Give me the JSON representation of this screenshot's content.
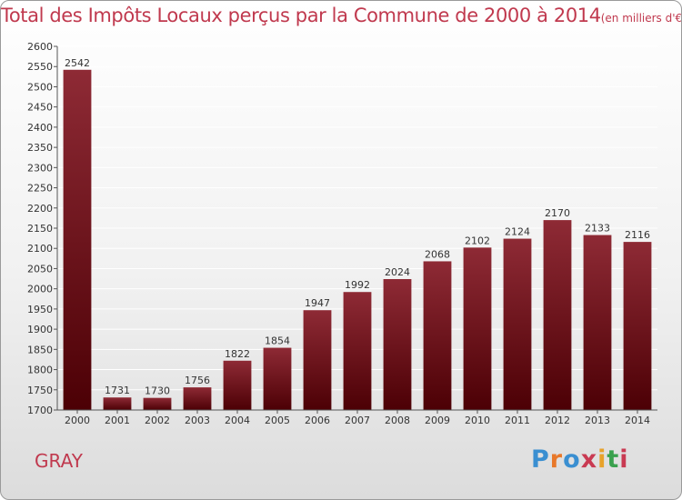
{
  "header": {
    "title": "Total des Impôts Locaux perçus par la Commune de 2000 à 2014",
    "unit": "(en milliers d'€)"
  },
  "footer": {
    "commune": "GRAY",
    "brand": "Proxiti",
    "brand_colors": [
      "#3a8fd1",
      "#e8782a",
      "#3a8fd1",
      "#c93a52",
      "#e8a22a",
      "#3aa14e",
      "#c93a52"
    ]
  },
  "colors": {
    "bar_top": "#8e2a35",
    "bar_bottom": "#4c0005",
    "accent": "#c0394e",
    "grid": "#ffffff"
  },
  "chart_data": {
    "type": "bar",
    "title": "Total des Impôts Locaux perçus par la Commune de 2000 à 2014",
    "xlabel": "",
    "ylabel": "(en milliers d'€)",
    "categories": [
      "2000",
      "2001",
      "2002",
      "2003",
      "2004",
      "2005",
      "2006",
      "2007",
      "2008",
      "2009",
      "2010",
      "2011",
      "2012",
      "2013",
      "2014"
    ],
    "values": [
      2542,
      1731,
      1730,
      1756,
      1822,
      1854,
      1947,
      1992,
      2024,
      2068,
      2102,
      2124,
      2170,
      2133,
      2116
    ],
    "ylim": [
      1700,
      2600
    ],
    "ytick_step": 50,
    "grid": true
  }
}
